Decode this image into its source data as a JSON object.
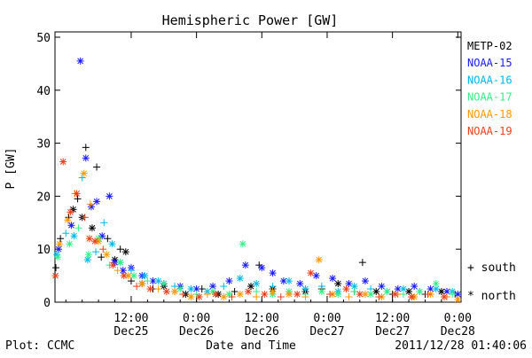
{
  "chart_data": {
    "type": "scatter",
    "title": "Hemispheric Power [GW]",
    "ylabel": "P [GW]",
    "xlabel": "Date and Time",
    "footer_left": "Plot: CCMC",
    "footer_right": "2011/12/28 01:40:06",
    "xlim": [
      "2011-12-24 22:00",
      "2011-12-28 00:36"
    ],
    "ylim": [
      0,
      51
    ],
    "yticks": [
      0,
      10,
      20,
      30,
      40,
      50
    ],
    "xticks": [
      {
        "t": "2011-12-25 12:00",
        "line1": "12:00",
        "line2": "Dec25"
      },
      {
        "t": "2011-12-26 00:00",
        "line1": "0:00",
        "line2": "Dec26"
      },
      {
        "t": "2011-12-26 12:00",
        "line1": "12:00",
        "line2": "Dec26"
      },
      {
        "t": "2011-12-27 00:00",
        "line1": "0:00",
        "line2": "Dec27"
      },
      {
        "t": "2011-12-27 12:00",
        "line1": "12:00",
        "line2": "Dec27"
      },
      {
        "t": "2011-12-28 00:00",
        "line1": "0:00",
        "line2": "Dec28"
      }
    ],
    "marker_legend": [
      {
        "symbol": "+",
        "label": "south"
      },
      {
        "symbol": "*",
        "label": "north"
      }
    ],
    "series": [
      {
        "name": "METP-02",
        "color": "#000000",
        "points": [
          [
            "2011-12-24 22:10",
            6.5,
            "+"
          ],
          [
            "2011-12-24 23:00",
            12.0,
            "+"
          ],
          [
            "2011-12-25 00:30",
            16.0,
            "+"
          ],
          [
            "2011-12-25 01:20",
            17.5,
            "*"
          ],
          [
            "2011-12-25 02:10",
            19.5,
            "+"
          ],
          [
            "2011-12-25 03:00",
            16.0,
            "*"
          ],
          [
            "2011-12-25 03:40",
            29.2,
            "+"
          ],
          [
            "2011-12-25 04:50",
            14.0,
            "*"
          ],
          [
            "2011-12-25 05:40",
            25.5,
            "+"
          ],
          [
            "2011-12-25 06:30",
            8.5,
            "+"
          ],
          [
            "2011-12-25 07:40",
            12.0,
            "+"
          ],
          [
            "2011-12-25 09:00",
            8.0,
            "*"
          ],
          [
            "2011-12-25 10:00",
            10.0,
            "+"
          ],
          [
            "2011-12-25 11:00",
            9.5,
            "*"
          ],
          [
            "2011-12-25 12:00",
            4.0,
            "+"
          ],
          [
            "2011-12-25 14:00",
            3.5,
            "*"
          ],
          [
            "2011-12-25 16:00",
            2.5,
            "+"
          ],
          [
            "2011-12-25 18:00",
            3.0,
            "*"
          ],
          [
            "2011-12-25 20:00",
            2.0,
            "+"
          ],
          [
            "2011-12-25 22:00",
            1.5,
            "*"
          ],
          [
            "2011-12-26 01:00",
            2.5,
            "+"
          ],
          [
            "2011-12-26 04:00",
            1.5,
            "*"
          ],
          [
            "2011-12-26 07:00",
            2.0,
            "+"
          ],
          [
            "2011-12-26 10:00",
            3.0,
            "*"
          ],
          [
            "2011-12-26 11:30",
            7.0,
            "+"
          ],
          [
            "2011-12-26 14:00",
            2.5,
            "*"
          ],
          [
            "2011-12-26 17:00",
            1.5,
            "+"
          ],
          [
            "2011-12-26 20:00",
            2.0,
            "*"
          ],
          [
            "2011-12-26 23:00",
            2.5,
            "+"
          ],
          [
            "2011-12-27 02:00",
            3.5,
            "*"
          ],
          [
            "2011-12-27 05:00",
            2.0,
            "+"
          ],
          [
            "2011-12-27 06:30",
            7.5,
            "+"
          ],
          [
            "2011-12-27 09:00",
            2.0,
            "*"
          ],
          [
            "2011-12-27 12:00",
            1.5,
            "+"
          ],
          [
            "2011-12-27 15:00",
            2.0,
            "*"
          ],
          [
            "2011-12-27 18:00",
            1.5,
            "+"
          ],
          [
            "2011-12-27 21:00",
            2.0,
            "*"
          ],
          [
            "2011-12-27 23:30",
            1.5,
            "+"
          ]
        ]
      },
      {
        "name": "NOAA-15",
        "color": "#1a1aff",
        "points": [
          [
            "2011-12-24 22:40",
            10.0,
            "*"
          ],
          [
            "2011-12-25 01:00",
            14.5,
            "*"
          ],
          [
            "2011-12-25 02:40",
            45.5,
            "*"
          ],
          [
            "2011-12-25 03:40",
            27.2,
            "*"
          ],
          [
            "2011-12-25 04:40",
            18.0,
            "*"
          ],
          [
            "2011-12-25 05:40",
            19.0,
            "*"
          ],
          [
            "2011-12-25 06:40",
            12.5,
            "*"
          ],
          [
            "2011-12-25 08:00",
            20.0,
            "*"
          ],
          [
            "2011-12-25 09:00",
            7.5,
            "*"
          ],
          [
            "2011-12-25 10:30",
            6.0,
            "*"
          ],
          [
            "2011-12-25 12:00",
            6.5,
            "*"
          ],
          [
            "2011-12-25 14:00",
            5.0,
            "*"
          ],
          [
            "2011-12-25 16:00",
            4.0,
            "*"
          ],
          [
            "2011-12-25 18:00",
            3.5,
            "*"
          ],
          [
            "2011-12-25 21:00",
            3.0,
            "*"
          ],
          [
            "2011-12-26 00:00",
            2.5,
            "*"
          ],
          [
            "2011-12-26 03:00",
            3.0,
            "*"
          ],
          [
            "2011-12-26 06:00",
            4.0,
            "*"
          ],
          [
            "2011-12-26 09:00",
            7.0,
            "*"
          ],
          [
            "2011-12-26 12:00",
            6.5,
            "*"
          ],
          [
            "2011-12-26 14:00",
            5.5,
            "*"
          ],
          [
            "2011-12-26 16:00",
            4.0,
            "*"
          ],
          [
            "2011-12-26 19:00",
            3.5,
            "*"
          ],
          [
            "2011-12-26 22:00",
            5.0,
            "*"
          ],
          [
            "2011-12-27 01:00",
            4.5,
            "*"
          ],
          [
            "2011-12-27 04:00",
            3.5,
            "*"
          ],
          [
            "2011-12-27 07:00",
            4.0,
            "*"
          ],
          [
            "2011-12-27 10:00",
            3.0,
            "*"
          ],
          [
            "2011-12-27 13:00",
            2.5,
            "*"
          ],
          [
            "2011-12-27 16:00",
            3.0,
            "*"
          ],
          [
            "2011-12-27 19:00",
            2.5,
            "*"
          ],
          [
            "2011-12-27 22:00",
            2.0,
            "*"
          ],
          [
            "2011-12-28 00:00",
            1.5,
            "*"
          ]
        ]
      },
      {
        "name": "NOAA-16",
        "color": "#00b8e6",
        "points": [
          [
            "2011-12-24 22:20",
            9.0,
            "*"
          ],
          [
            "2011-12-25 00:00",
            13.0,
            "+"
          ],
          [
            "2011-12-25 01:30",
            12.5,
            "*"
          ],
          [
            "2011-12-25 03:00",
            23.5,
            "+"
          ],
          [
            "2011-12-25 04:00",
            8.0,
            "*"
          ],
          [
            "2011-12-25 05:30",
            9.5,
            "+"
          ],
          [
            "2011-12-25 07:00",
            15.0,
            "+"
          ],
          [
            "2011-12-25 08:30",
            11.0,
            "*"
          ],
          [
            "2011-12-25 10:00",
            7.5,
            "*"
          ],
          [
            "2011-12-25 12:00",
            6.0,
            "+"
          ],
          [
            "2011-12-25 14:30",
            5.0,
            "*"
          ],
          [
            "2011-12-25 17:00",
            4.0,
            "*"
          ],
          [
            "2011-12-25 20:00",
            3.0,
            "+"
          ],
          [
            "2011-12-25 23:00",
            2.5,
            "*"
          ],
          [
            "2011-12-26 02:00",
            2.0,
            "*"
          ],
          [
            "2011-12-26 05:00",
            3.0,
            "+"
          ],
          [
            "2011-12-26 08:00",
            4.5,
            "*"
          ],
          [
            "2011-12-26 11:00",
            3.5,
            "*"
          ],
          [
            "2011-12-26 14:00",
            3.0,
            "+"
          ],
          [
            "2011-12-26 17:00",
            4.0,
            "*"
          ],
          [
            "2011-12-26 20:00",
            2.5,
            "*"
          ],
          [
            "2011-12-26 23:00",
            3.0,
            "+"
          ],
          [
            "2011-12-27 02:00",
            2.0,
            "*"
          ],
          [
            "2011-12-27 05:00",
            3.0,
            "*"
          ],
          [
            "2011-12-27 08:00",
            2.5,
            "+"
          ],
          [
            "2011-12-27 11:00",
            2.0,
            "*"
          ],
          [
            "2011-12-27 14:00",
            2.5,
            "*"
          ],
          [
            "2011-12-27 17:00",
            2.0,
            "+"
          ],
          [
            "2011-12-27 20:00",
            2.5,
            "*"
          ],
          [
            "2011-12-27 23:00",
            2.0,
            "*"
          ]
        ]
      },
      {
        "name": "NOAA-17",
        "color": "#33ee88",
        "points": [
          [
            "2011-12-24 22:30",
            8.5,
            "*"
          ],
          [
            "2011-12-25 00:40",
            11.0,
            "*"
          ],
          [
            "2011-12-25 02:20",
            14.0,
            "+"
          ],
          [
            "2011-12-25 04:10",
            9.0,
            "*"
          ],
          [
            "2011-12-25 06:00",
            12.0,
            "*"
          ],
          [
            "2011-12-25 08:00",
            7.0,
            "+"
          ],
          [
            "2011-12-25 10:00",
            7.5,
            "*"
          ],
          [
            "2011-12-25 12:30",
            5.0,
            "*"
          ],
          [
            "2011-12-25 15:00",
            4.0,
            "+"
          ],
          [
            "2011-12-25 18:00",
            3.5,
            "*"
          ],
          [
            "2011-12-25 21:00",
            2.5,
            "*"
          ],
          [
            "2011-12-26 00:00",
            1.5,
            "+"
          ],
          [
            "2011-12-26 03:00",
            2.0,
            "*"
          ],
          [
            "2011-12-26 06:00",
            1.5,
            "*"
          ],
          [
            "2011-12-26 08:30",
            11.0,
            "*"
          ],
          [
            "2011-12-26 11:00",
            2.0,
            "+"
          ],
          [
            "2011-12-26 14:00",
            1.5,
            "*"
          ],
          [
            "2011-12-26 17:00",
            2.0,
            "*"
          ],
          [
            "2011-12-26 20:00",
            1.5,
            "+"
          ],
          [
            "2011-12-26 23:00",
            2.0,
            "*"
          ],
          [
            "2011-12-27 02:00",
            1.5,
            "*"
          ],
          [
            "2011-12-27 05:00",
            2.0,
            "+"
          ],
          [
            "2011-12-27 08:00",
            1.5,
            "*"
          ],
          [
            "2011-12-27 11:00",
            2.0,
            "*"
          ],
          [
            "2011-12-27 14:00",
            1.5,
            "+"
          ],
          [
            "2011-12-27 17:00",
            2.0,
            "*"
          ],
          [
            "2011-12-27 20:00",
            3.5,
            "*"
          ],
          [
            "2011-12-27 23:00",
            1.5,
            "+"
          ]
        ]
      },
      {
        "name": "NOAA-18",
        "color": "#ff9900",
        "points": [
          [
            "2011-12-24 22:50",
            11.0,
            "*"
          ],
          [
            "2011-12-25 00:20",
            15.5,
            "*"
          ],
          [
            "2011-12-25 01:40",
            20.5,
            "+"
          ],
          [
            "2011-12-25 03:20",
            24.3,
            "*"
          ],
          [
            "2011-12-25 04:30",
            18.5,
            "+"
          ],
          [
            "2011-12-25 06:00",
            11.5,
            "*"
          ],
          [
            "2011-12-25 07:30",
            9.0,
            "*"
          ],
          [
            "2011-12-25 09:30",
            6.0,
            "+"
          ],
          [
            "2011-12-25 11:30",
            5.0,
            "*"
          ],
          [
            "2011-12-25 14:00",
            3.5,
            "*"
          ],
          [
            "2011-12-25 17:00",
            2.5,
            "+"
          ],
          [
            "2011-12-25 20:00",
            2.0,
            "*"
          ],
          [
            "2011-12-25 23:00",
            1.0,
            "*"
          ],
          [
            "2011-12-26 02:00",
            1.5,
            "+"
          ],
          [
            "2011-12-26 05:00",
            1.0,
            "*"
          ],
          [
            "2011-12-26 08:00",
            1.5,
            "*"
          ],
          [
            "2011-12-26 11:00",
            1.0,
            "+"
          ],
          [
            "2011-12-26 14:00",
            2.0,
            "*"
          ],
          [
            "2011-12-26 17:00",
            1.5,
            "*"
          ],
          [
            "2011-12-26 20:00",
            1.0,
            "+"
          ],
          [
            "2011-12-26 22:30",
            8.0,
            "*"
          ],
          [
            "2011-12-27 01:00",
            1.5,
            "*"
          ],
          [
            "2011-12-27 04:00",
            1.0,
            "+"
          ],
          [
            "2011-12-27 07:00",
            1.5,
            "*"
          ],
          [
            "2011-12-27 10:00",
            1.0,
            "*"
          ],
          [
            "2011-12-27 13:00",
            1.5,
            "+"
          ],
          [
            "2011-12-27 16:00",
            1.0,
            "*"
          ],
          [
            "2011-12-27 19:00",
            1.5,
            "*"
          ],
          [
            "2011-12-27 22:00",
            1.0,
            "+"
          ],
          [
            "2011-12-28 00:00",
            0.5,
            "*"
          ]
        ]
      },
      {
        "name": "NOAA-19",
        "color": "#e8401c",
        "points": [
          [
            "2011-12-24 22:05",
            5.0,
            "*"
          ],
          [
            "2011-12-24 23:30",
            26.5,
            "*"
          ],
          [
            "2011-12-25 00:50",
            17.0,
            "*"
          ],
          [
            "2011-12-25 02:00",
            20.5,
            "*"
          ],
          [
            "2011-12-25 03:30",
            16.0,
            "+"
          ],
          [
            "2011-12-25 04:20",
            12.0,
            "*"
          ],
          [
            "2011-12-25 05:20",
            11.5,
            "*"
          ],
          [
            "2011-12-25 06:50",
            10.0,
            "+"
          ],
          [
            "2011-12-25 08:40",
            7.0,
            "*"
          ],
          [
            "2011-12-25 10:40",
            5.0,
            "*"
          ],
          [
            "2011-12-25 13:00",
            3.0,
            "+"
          ],
          [
            "2011-12-25 15:30",
            2.5,
            "*"
          ],
          [
            "2011-12-25 18:30",
            2.0,
            "*"
          ],
          [
            "2011-12-25 21:30",
            1.5,
            "+"
          ],
          [
            "2011-12-26 00:30",
            1.0,
            "*"
          ],
          [
            "2011-12-26 03:30",
            1.5,
            "*"
          ],
          [
            "2011-12-26 06:30",
            1.0,
            "+"
          ],
          [
            "2011-12-26 09:30",
            2.0,
            "*"
          ],
          [
            "2011-12-26 12:30",
            1.5,
            "*"
          ],
          [
            "2011-12-26 15:30",
            1.0,
            "+"
          ],
          [
            "2011-12-26 18:30",
            1.5,
            "*"
          ],
          [
            "2011-12-26 21:00",
            5.5,
            "*"
          ],
          [
            "2011-12-27 00:30",
            1.5,
            "+"
          ],
          [
            "2011-12-27 03:30",
            2.5,
            "*"
          ],
          [
            "2011-12-27 06:00",
            1.5,
            "*"
          ],
          [
            "2011-12-27 09:30",
            1.0,
            "+"
          ],
          [
            "2011-12-27 12:30",
            1.5,
            "*"
          ],
          [
            "2011-12-27 15:30",
            1.0,
            "*"
          ],
          [
            "2011-12-27 18:30",
            1.5,
            "+"
          ],
          [
            "2011-12-27 21:30",
            1.0,
            "*"
          ]
        ]
      }
    ]
  }
}
